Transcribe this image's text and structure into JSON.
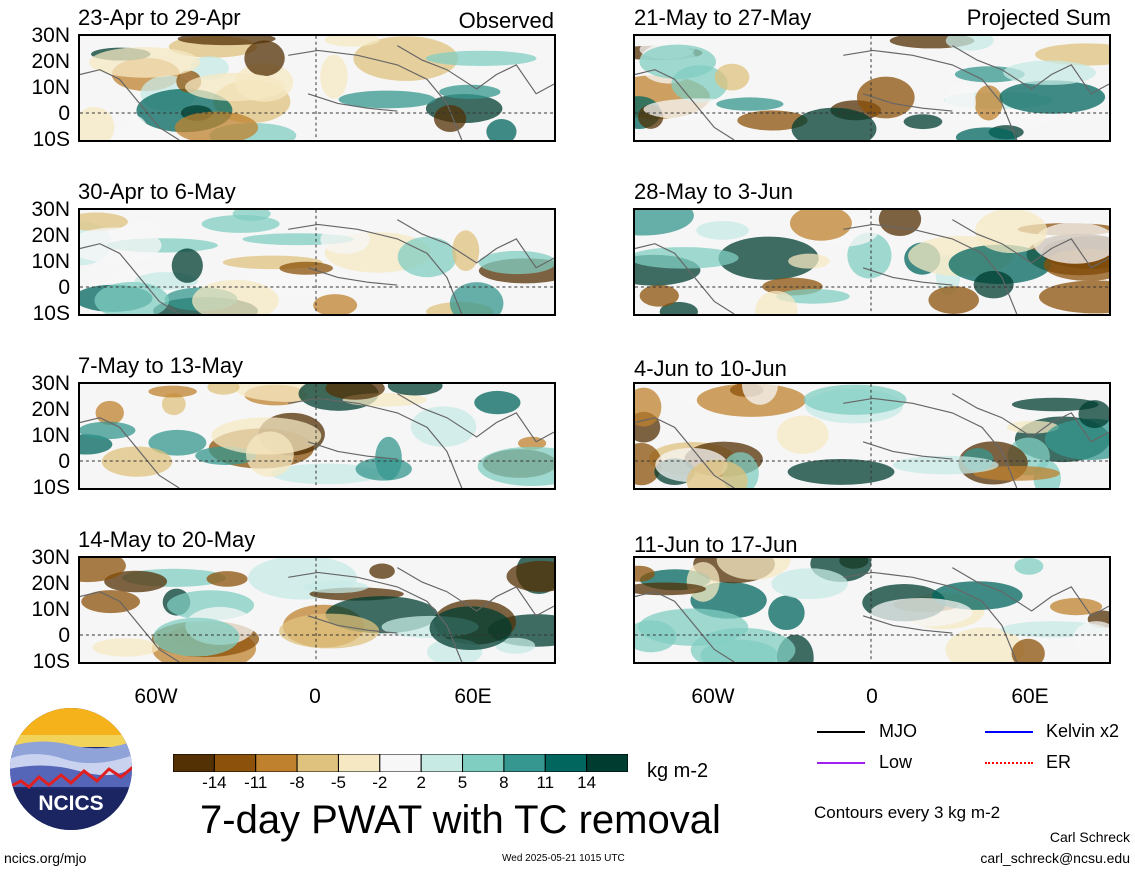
{
  "panels_left_header": "Observed",
  "panels_right_header": "Projected Sum",
  "panels_left": [
    {
      "title": "23-Apr to 29-Apr"
    },
    {
      "title": "30-Apr to 6-May"
    },
    {
      "title": "7-May to 13-May"
    },
    {
      "title": "14-May to 20-May"
    }
  ],
  "panels_right": [
    {
      "title": "21-May to 27-May"
    },
    {
      "title": "28-May to 3-Jun"
    },
    {
      "title": "4-Jun to 10-Jun"
    },
    {
      "title": "11-Jun to 17-Jun"
    }
  ],
  "lat_labels": [
    "30N",
    "20N",
    "10N",
    "0",
    "10S"
  ],
  "lon_labels": [
    "60W",
    "0",
    "60E"
  ],
  "colorbar": {
    "labels": [
      "-14",
      "-11",
      "-8",
      "-5",
      "-2",
      "2",
      "5",
      "8",
      "11",
      "14"
    ],
    "colors": [
      "#543005",
      "#8c510a",
      "#bf812d",
      "#dfc27d",
      "#f6e8c3",
      "#f7f7f7",
      "#c7eae5",
      "#80cdc1",
      "#35978f",
      "#01665e",
      "#003c30"
    ],
    "units": "kg m-2"
  },
  "legend": {
    "mjo": "MJO",
    "kelvin": "Kelvin x2",
    "low": "Low",
    "er": "ER",
    "mjo_color": "#000000",
    "kelvin_color": "#0000ff",
    "low_color": "#a020f0",
    "er_color": "#ff0000",
    "contours": "Contours every 3 kg m-2"
  },
  "main_title": "7-day PWAT with TC removal",
  "logo_text": "NCICS",
  "footer": {
    "url": "ncics.org/mjo",
    "timestamp": "Wed 2025-05-21 1015 UTC",
    "author": "Carl Schreck",
    "email": "carl_schreck@ncsu.edu"
  }
}
